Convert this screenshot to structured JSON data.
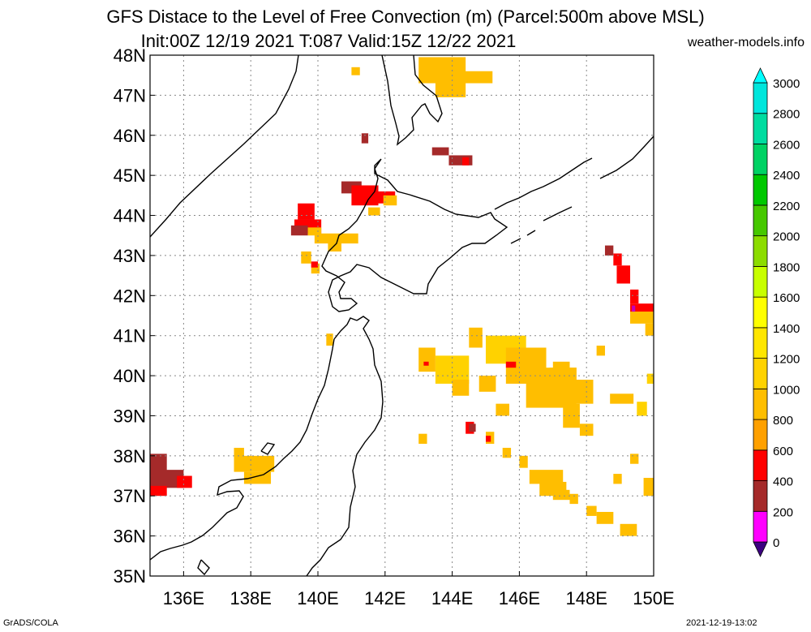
{
  "title_line1": "GFS Distace to the Level of Free Convection (m) (Parcel:500m above MSL)",
  "title_line2": "Init:00Z 12/19 2021 T:087 Valid:15Z 12/22 2021",
  "site": "weather-models.info",
  "footer_left": "GrADS/COLA",
  "footer_right": "2021-12-19-13:02",
  "map": {
    "lon_range": [
      135,
      150
    ],
    "lat_range": [
      35,
      48
    ],
    "lon_ticks": [
      "136E",
      "138E",
      "140E",
      "142E",
      "144E",
      "146E",
      "148E",
      "150E"
    ],
    "lat_ticks": [
      "35N",
      "36N",
      "37N",
      "38N",
      "39N",
      "40N",
      "41N",
      "42N",
      "43N",
      "44N",
      "45N",
      "46N",
      "47N",
      "48N"
    ]
  },
  "colorbar": {
    "levels": [
      "0",
      "200",
      "400",
      "600",
      "800",
      "1000",
      "1200",
      "1400",
      "1600",
      "1800",
      "2000",
      "2200",
      "2400",
      "2600",
      "2800",
      "3000"
    ],
    "colors": [
      "#3c0080",
      "#ff00ff",
      "#a52a2a",
      "#ff0000",
      "#ffa000",
      "#ffbe00",
      "#ffd200",
      "#ffe600",
      "#ffff00",
      "#c8ff00",
      "#8cdc00",
      "#46c800",
      "#00c800",
      "#00d264",
      "#00dca0",
      "#00e6dc",
      "#00ffff"
    ]
  }
}
